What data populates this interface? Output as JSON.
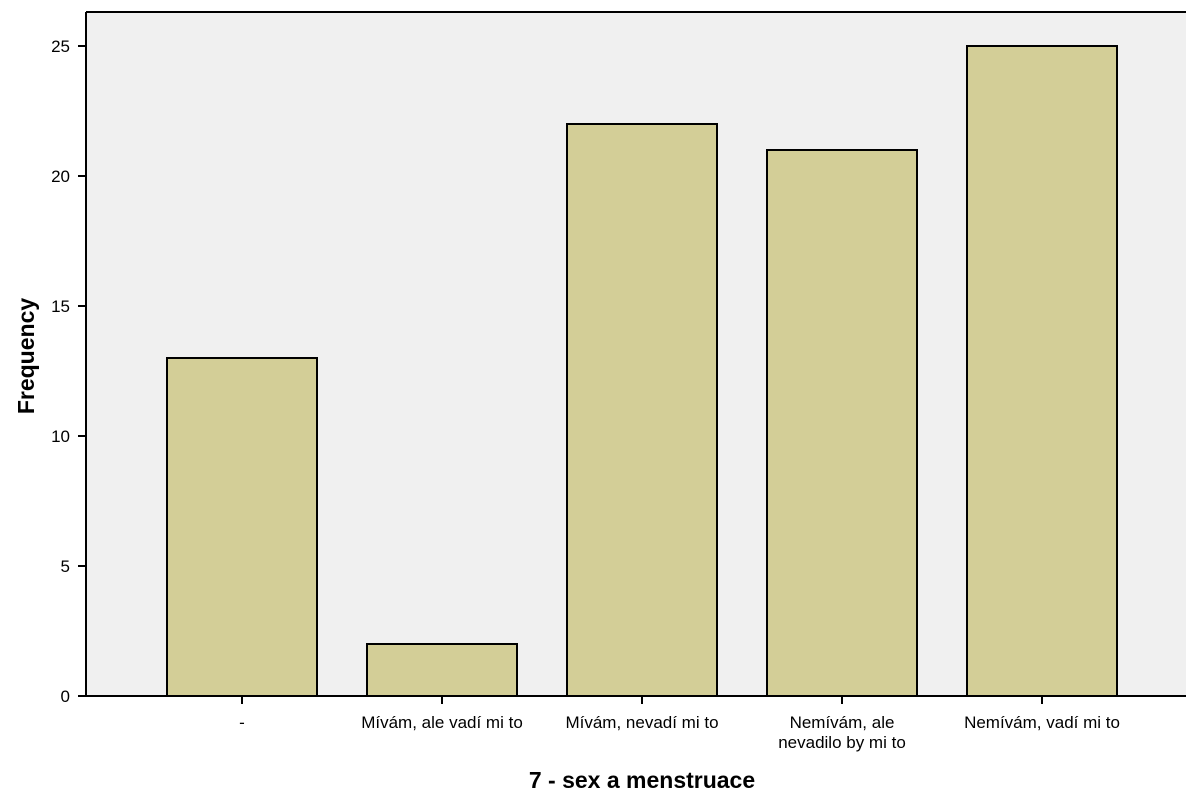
{
  "chart_data": {
    "type": "bar",
    "categories": [
      "-",
      "Mívám, ale vadí mi to",
      "Mívám, nevadí mi to",
      "Nemívám, ale nevadilo by mi to",
      "Nemívám, vadí mi to"
    ],
    "category_label_lines": [
      [
        "-"
      ],
      [
        "Mívám, ale vadí mi to"
      ],
      [
        "Mívám, nevadí mi to"
      ],
      [
        "Nemívám, ale",
        "nevadilo by mi to"
      ],
      [
        "Nemívám, vadí mi to"
      ]
    ],
    "values": [
      13,
      2,
      22,
      21,
      25
    ],
    "xlabel": "7 - sex a menstruace",
    "ylabel": "Frequency",
    "ylim": [
      0,
      25
    ],
    "yticks": [
      0,
      5,
      10,
      15,
      20,
      25
    ],
    "grid": false,
    "legend": "none",
    "colors": {
      "bar_fill": "#d3ce97",
      "bar_stroke": "#000000",
      "plot_background": "#f0f0f0",
      "axis": "#000000"
    }
  }
}
